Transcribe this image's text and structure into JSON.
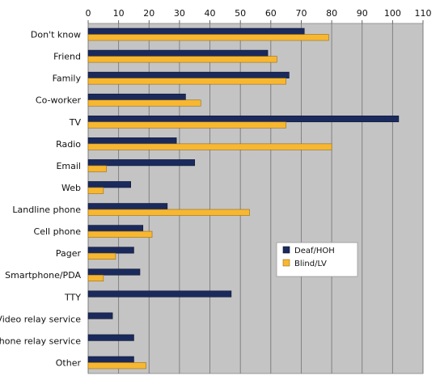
{
  "chart_data": {
    "type": "bar",
    "orientation": "horizontal",
    "title": "",
    "xlabel": "",
    "ylabel": "",
    "xlim": [
      0,
      110
    ],
    "x_ticks": [
      "0",
      "10",
      "20",
      "30",
      "40",
      "50",
      "60",
      "70",
      "80",
      "90",
      "100",
      "110"
    ],
    "x_axis_position": "top",
    "grid": true,
    "legend_position": "right-middle",
    "categories": [
      "Don't know",
      "Friend",
      "Family",
      "Co-worker",
      "TV",
      "Radio",
      "Email",
      "Web",
      "Landline phone",
      "Cell phone",
      "Pager",
      "Smartphone/PDA",
      "TTY",
      "Video relay service",
      "Phone relay service",
      "Other"
    ],
    "series": [
      {
        "name": "Deaf/HOH",
        "color": "#1b2a5c",
        "values": [
          71,
          59,
          66,
          32,
          102,
          29,
          35,
          14,
          26,
          18,
          15,
          17,
          47,
          8,
          15,
          15
        ]
      },
      {
        "name": "Blind/LV",
        "color": "#f7b731",
        "values": [
          79,
          62,
          65,
          37,
          65,
          80,
          6,
          5,
          53,
          21,
          9,
          5,
          0,
          0,
          0,
          19
        ]
      }
    ]
  }
}
